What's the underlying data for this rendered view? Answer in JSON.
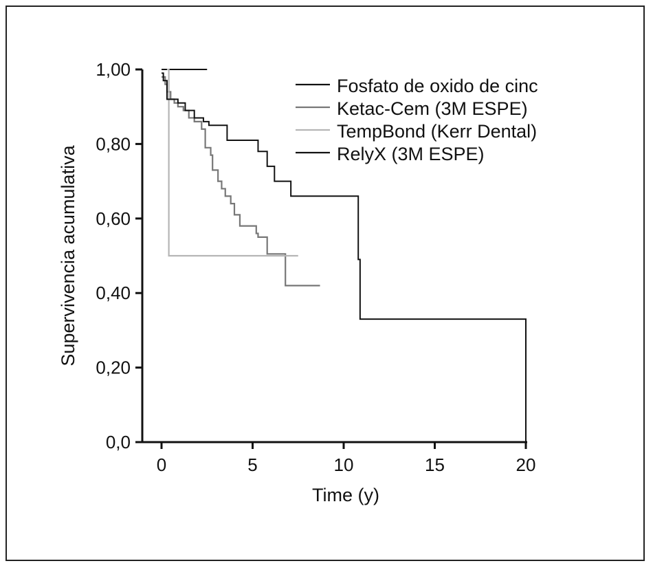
{
  "chart_data": {
    "type": "line",
    "step": true,
    "xlabel": "Time (y)",
    "ylabel": "Supervivencia acumulativa",
    "xlim": [
      -1,
      20
    ],
    "ylim": [
      0,
      1
    ],
    "xticks": [
      0,
      5,
      10,
      15,
      20
    ],
    "xtick_labels": [
      "0",
      "5",
      "10",
      "15",
      "20"
    ],
    "yticks": [
      0,
      0.2,
      0.4,
      0.6,
      0.8,
      1.0
    ],
    "ytick_labels": [
      "0,0",
      "0,20",
      "0,40",
      "0,60",
      "0,80",
      "1,00"
    ],
    "legend_position": "top-right",
    "series": [
      {
        "name": "Fosfato de oxido de cinc",
        "color": "#111111",
        "x": [
          0.0,
          2.5
        ],
        "y": [
          1.0,
          1.0
        ]
      },
      {
        "name": "Ketac-Cem (3M ESPE)",
        "color": "#777777",
        "x": [
          0.0,
          0.2,
          0.3,
          0.5,
          0.7,
          0.9,
          1.2,
          1.5,
          1.8,
          2.2,
          2.4,
          2.7,
          2.8,
          3.1,
          3.3,
          3.5,
          3.8,
          4.0,
          4.3,
          5.2,
          5.3,
          5.8,
          6.4,
          6.8,
          8.7
        ],
        "y": [
          0.98,
          0.96,
          0.94,
          0.92,
          0.91,
          0.9,
          0.89,
          0.87,
          0.86,
          0.84,
          0.79,
          0.77,
          0.73,
          0.7,
          0.68,
          0.66,
          0.64,
          0.61,
          0.58,
          0.56,
          0.55,
          0.505,
          0.505,
          0.42,
          0.42
        ],
        "step_y": [
          0.96,
          0.94,
          0.92,
          0.91,
          0.9,
          0.89,
          0.87,
          0.86,
          0.84,
          0.79,
          0.77,
          0.73,
          0.7,
          0.68,
          0.66,
          0.64,
          0.61,
          0.58,
          0.56,
          0.55,
          0.505,
          0.505,
          0.42,
          0.42,
          0.42
        ]
      },
      {
        "name": "TempBond (Kerr Dental)",
        "color": "#b5b5b5",
        "x": [
          0.3,
          0.4,
          7.5
        ],
        "y": [
          1.0,
          0.5,
          0.5
        ]
      },
      {
        "name": "RelyX (3M ESPE)",
        "color": "#111111",
        "x": [
          0.0,
          0.1,
          0.3,
          0.5,
          0.9,
          1.3,
          1.8,
          2.3,
          2.6,
          3.6,
          5.3,
          5.8,
          6.2,
          7.1,
          10.8,
          10.9,
          11.1,
          20.0
        ],
        "y": [
          0.99,
          0.97,
          0.92,
          0.92,
          0.91,
          0.89,
          0.87,
          0.86,
          0.85,
          0.81,
          0.78,
          0.74,
          0.7,
          0.66,
          0.49,
          0.33,
          0.33,
          0.0
        ]
      }
    ]
  }
}
